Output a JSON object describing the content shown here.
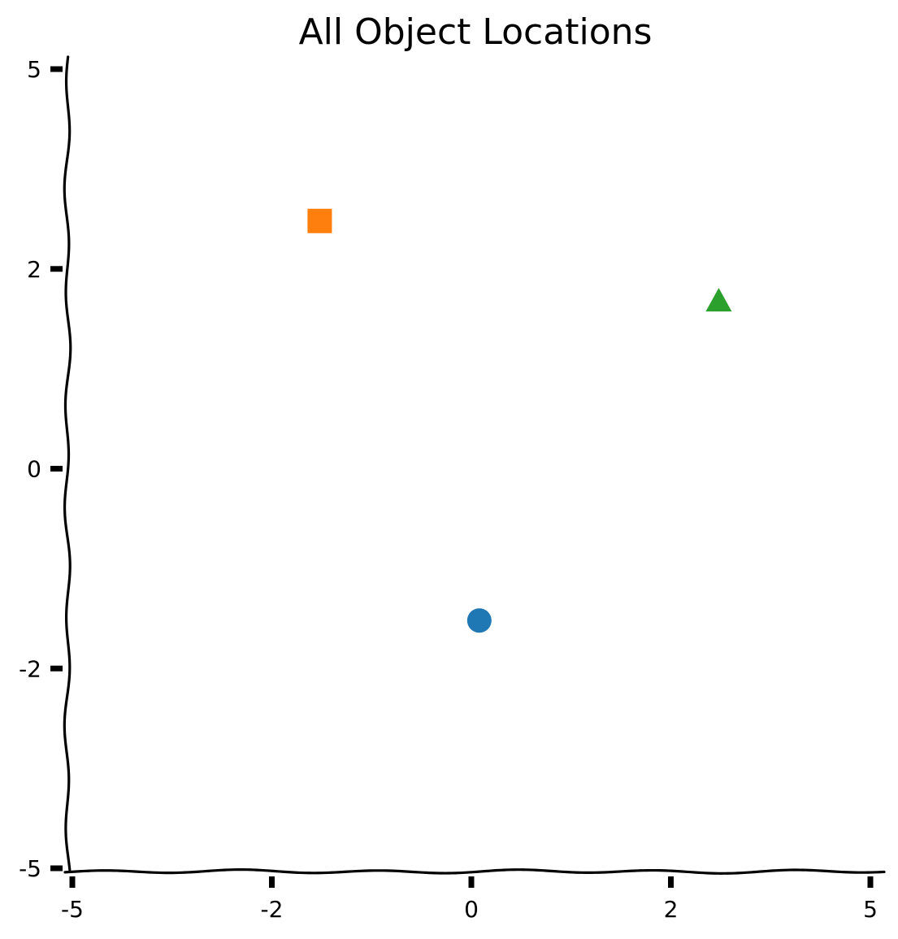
{
  "chart_data": {
    "type": "scatter",
    "title": "All Object Locations",
    "xlabel": "",
    "ylabel": "",
    "xlim": [
      -5,
      5
    ],
    "ylim": [
      -5,
      5
    ],
    "grid": false,
    "xticks": [
      -5,
      -2.5,
      0,
      2.5,
      5
    ],
    "xtick_labels": [
      "-5",
      "-2",
      "0",
      "2",
      "5"
    ],
    "yticks": [
      -5,
      -2.5,
      0,
      2.5,
      5
    ],
    "ytick_labels": [
      "-5",
      "-2",
      "0",
      "2",
      "5"
    ],
    "points": [
      {
        "x": 0.1,
        "y": -1.9,
        "marker": "circle",
        "color": "#1f77b4"
      },
      {
        "x": -1.9,
        "y": 3.1,
        "marker": "square",
        "color": "#ff7f0e"
      },
      {
        "x": 3.1,
        "y": 2.1,
        "marker": "triangle",
        "color": "#2ca02c"
      }
    ]
  }
}
